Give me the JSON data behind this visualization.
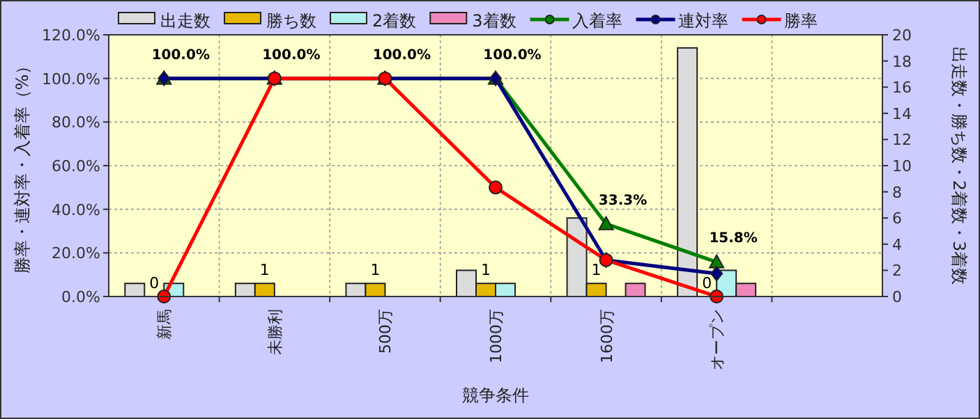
{
  "chart_data": {
    "type": "bar",
    "xlabel": "競争条件",
    "ylabel": "勝率・連対率・入着率（%）",
    "y2label": "出走数・勝ち数・2着数・3着数",
    "categories": [
      "新馬",
      "未勝利",
      "500万",
      "1000万",
      "1600万",
      "オープン",
      null
    ],
    "series": [
      {
        "name": "出走数",
        "axis": "y2",
        "color": "#dcdcdc",
        "values": [
          1,
          1,
          1,
          2,
          6,
          19,
          null
        ]
      },
      {
        "name": "勝ち数",
        "axis": "y2",
        "color": "#e6b800",
        "values": [
          0,
          1,
          1,
          1,
          1,
          0,
          null
        ],
        "value_labels": [
          "0",
          "1",
          "1",
          "1",
          "1",
          "0",
          null
        ]
      },
      {
        "name": "2着数",
        "axis": "y2",
        "color": "#b3f0f0",
        "values": [
          1,
          0,
          0,
          1,
          0,
          2,
          null
        ]
      },
      {
        "name": "3着数",
        "axis": "y2",
        "color": "#ee88bb",
        "values": [
          0,
          0,
          0,
          0,
          1,
          1,
          null
        ]
      },
      {
        "name": "入着率",
        "type": "line",
        "color": "#008000",
        "marker": "triangle",
        "values": [
          100,
          100,
          100,
          100,
          33.3,
          15.8,
          null
        ],
        "value_labels": [
          "100.0%",
          "100.0%",
          "100.0%",
          "100.0%",
          "33.3%",
          "15.8%",
          null
        ]
      },
      {
        "name": "連対率",
        "type": "line",
        "color": "#000080",
        "marker": "diamond",
        "values": [
          100,
          100,
          100,
          100,
          16.7,
          10.5,
          null
        ]
      },
      {
        "name": "勝率",
        "type": "line",
        "color": "#ff0000",
        "marker": "circle",
        "values": [
          0,
          100,
          100,
          50,
          16.7,
          0,
          null
        ]
      }
    ],
    "ylim": [
      0,
      120
    ],
    "yticks": [
      {
        "value": 0,
        "label": "0.0%"
      },
      {
        "value": 20,
        "label": "20.0%"
      },
      {
        "value": 40,
        "label": "40.0%"
      },
      {
        "value": 60,
        "label": "60.0%"
      },
      {
        "value": 80,
        "label": "80.0%"
      },
      {
        "value": 100,
        "label": "100.0%"
      },
      {
        "value": 120,
        "label": "120.0%"
      }
    ],
    "y2lim": [
      0,
      20
    ],
    "y2ticks": [
      0,
      2,
      4,
      6,
      8,
      10,
      12,
      14,
      16,
      18,
      20
    ],
    "grid": true,
    "legend": "top"
  }
}
